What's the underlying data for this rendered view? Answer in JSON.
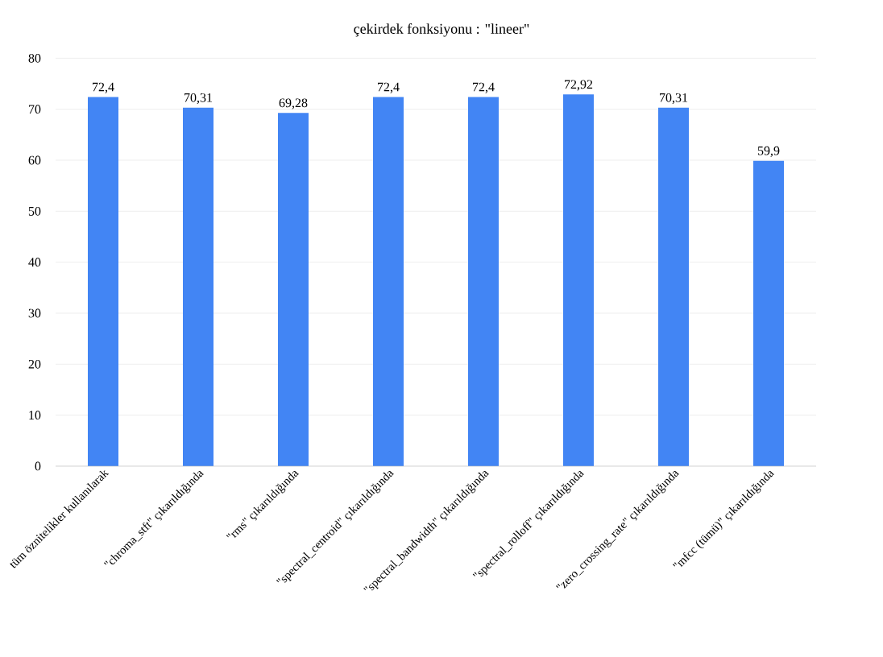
{
  "chart_data": {
    "type": "bar",
    "title": "çekirdek fonksiyonu : \"lineer\"",
    "categories": [
      "tüm öznitelikler kullanılarak",
      "\"chroma_stft\" çıkarıldığında",
      "\"rms\" çıkarıldığında",
      "\"spectral_centroid\" çıkarıldığında",
      "\"spectral_bandwidth\" çıkarıldığında",
      "\"spectral_rolloff\" çıkarıldığında",
      "\"zero_crossing_rate\" çıkarıldığında",
      "\"mfcc (tümü)\" çıkarıldığında"
    ],
    "values": [
      72.4,
      70.31,
      69.28,
      72.4,
      72.4,
      72.92,
      70.31,
      59.9
    ],
    "value_labels": [
      "72,4",
      "70,31",
      "69,28",
      "72,4",
      "72,4",
      "72,92",
      "70,31",
      "59,9"
    ],
    "color": "#4285f4",
    "ylim": [
      0,
      80
    ],
    "yticks": [
      0,
      10,
      20,
      30,
      40,
      50,
      60,
      70,
      80
    ],
    "grid": "y"
  }
}
